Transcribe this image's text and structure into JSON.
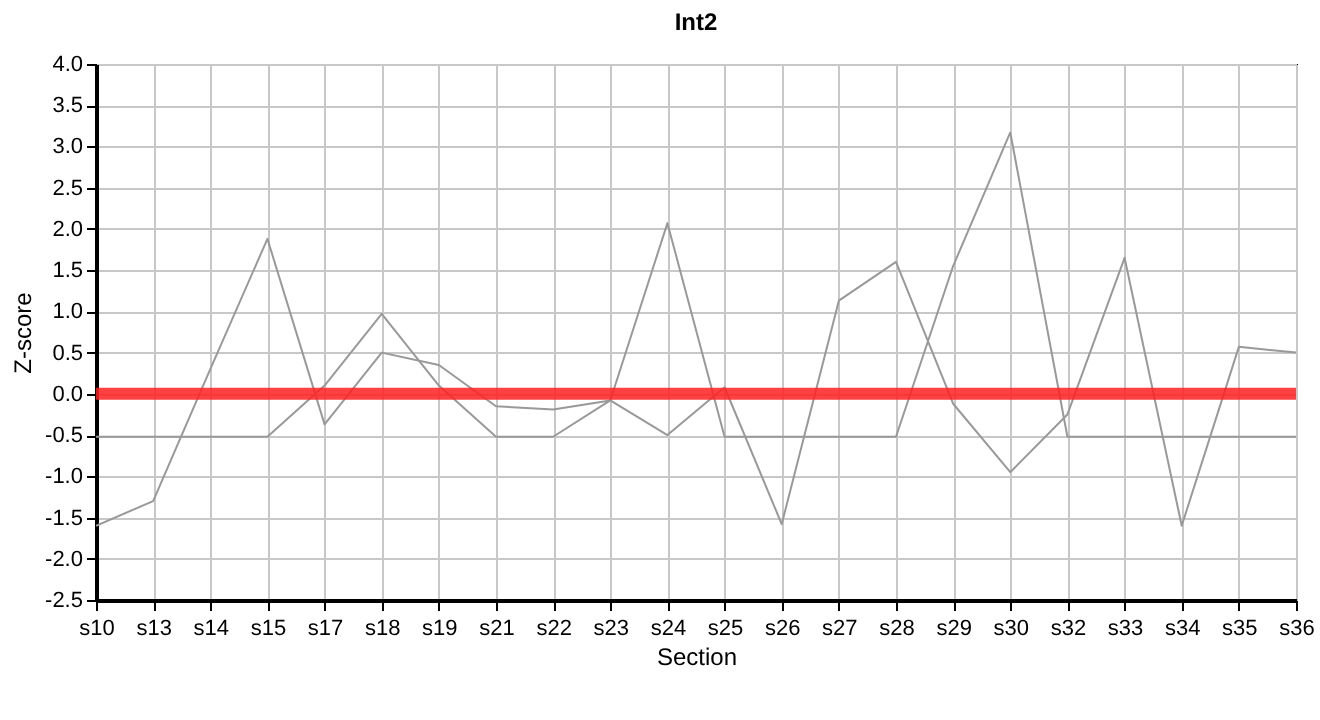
{
  "chart_data": {
    "type": "line",
    "title": "Int2",
    "xlabel": "Section",
    "ylabel": "Z-score",
    "categories": [
      "s10",
      "s13",
      "s14",
      "s15",
      "s17",
      "s18",
      "s19",
      "s21",
      "s22",
      "s23",
      "s24",
      "s25",
      "s26",
      "s27",
      "s28",
      "s29",
      "s30",
      "s32",
      "s33",
      "s34",
      "s35",
      "s36"
    ],
    "series": [
      {
        "color": "#999999",
        "values": [
          -1.6,
          -1.3,
          0.3,
          1.88,
          -0.37,
          0.5,
          0.35,
          -0.15,
          -0.19,
          -0.08,
          2.07,
          -0.52,
          -0.52,
          -0.52,
          -0.52,
          1.55,
          3.17,
          -0.52,
          -0.52,
          -0.52,
          -0.52,
          -0.52
        ]
      },
      {
        "color": "#999999",
        "values": [
          -0.52,
          -0.52,
          -0.52,
          -0.52,
          0.1,
          0.97,
          0.1,
          -0.52,
          -0.52,
          -0.08,
          -0.5,
          0.08,
          -1.58,
          1.13,
          1.6,
          -0.12,
          -0.95,
          -0.25,
          1.65,
          -1.6,
          0.57,
          0.5
        ]
      }
    ],
    "ylim": [
      -2.5,
      4.0
    ],
    "yticks": [
      {
        "value": -2.5,
        "label": "-2.5"
      },
      {
        "value": -2,
        "label": "-2.0"
      },
      {
        "value": -1.5,
        "label": "-1.5"
      },
      {
        "value": -1,
        "label": "-1.0"
      },
      {
        "value": -0.5,
        "label": "-0.5"
      },
      {
        "value": 0,
        "label": "0.0"
      },
      {
        "value": 0.5,
        "label": "0.5"
      },
      {
        "value": 1,
        "label": "1.0"
      },
      {
        "value": 1.5,
        "label": "1.5"
      },
      {
        "value": 2,
        "label": "2.0"
      },
      {
        "value": 2.5,
        "label": "2.5"
      },
      {
        "value": 3,
        "label": "3.0"
      },
      {
        "value": 3.5,
        "label": "3.5"
      },
      {
        "value": 4,
        "label": "4.0"
      }
    ],
    "ref_lines": [
      {
        "axis": "y",
        "value": 0,
        "color": "#ff2020"
      }
    ],
    "grid": true,
    "marker": "none",
    "line_style": "solid"
  }
}
